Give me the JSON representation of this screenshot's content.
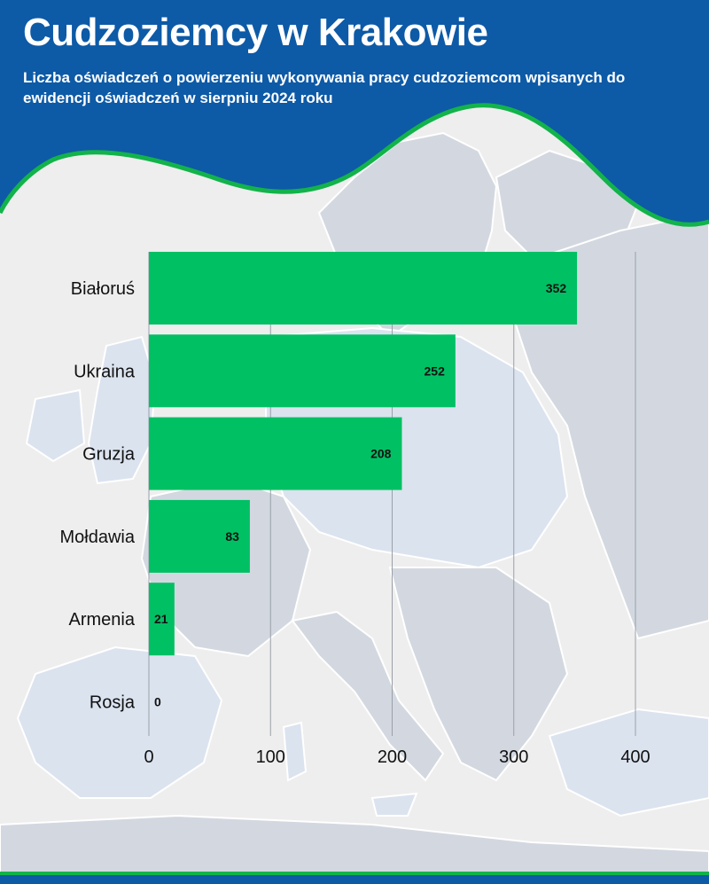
{
  "header": {
    "title": "Cudzoziemcy w Krakowie",
    "subtitle": "Liczba oświadczeń o powierzeniu wykonywania pracy cudzoziemcom wpisanych do ewidencji oświadczeń w sierpniu 2024 roku"
  },
  "colors": {
    "header_blue": "#0d5aa7",
    "accent_green": "#12b34a",
    "bar_green": "#00c064",
    "background": "#eeeeee",
    "map_land": "#d3d8e0",
    "map_highlight": "#dbe3ef"
  },
  "chart_data": {
    "type": "bar",
    "orientation": "horizontal",
    "categories": [
      "Białoruś",
      "Ukraina",
      "Gruzja",
      "Mołdawia",
      "Armenia",
      "Rosja"
    ],
    "values": [
      352,
      252,
      208,
      83,
      21,
      0
    ],
    "xlim": [
      0,
      400
    ],
    "xticks": [
      0,
      100,
      200,
      300,
      400
    ],
    "grid": "vertical",
    "data_labels": true,
    "legend": "none"
  }
}
